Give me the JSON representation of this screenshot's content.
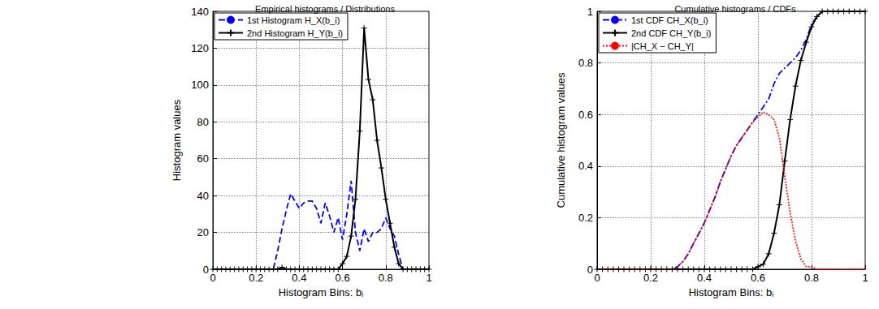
{
  "chart_data": [
    {
      "type": "line",
      "title": "Empirical histograms / Distributions",
      "x_label": "Histogram Bins: bᵢ",
      "y_label": "Histogram values",
      "x": [
        0,
        0.02,
        0.04,
        0.06,
        0.08,
        0.1,
        0.12,
        0.14,
        0.16,
        0.18,
        0.2,
        0.22,
        0.24,
        0.26,
        0.28,
        0.3,
        0.32,
        0.34,
        0.36,
        0.38,
        0.4,
        0.42,
        0.44,
        0.46,
        0.48,
        0.5,
        0.52,
        0.54,
        0.56,
        0.58,
        0.6,
        0.62,
        0.64,
        0.66,
        0.68,
        0.7,
        0.72,
        0.74,
        0.76,
        0.78,
        0.8,
        0.82,
        0.84,
        0.86,
        0.88,
        0.9,
        0.92,
        0.94,
        0.96,
        0.98,
        1
      ],
      "xlim": [
        0,
        1
      ],
      "xticks": [
        0,
        0.2,
        0.4,
        0.6,
        0.8,
        1
      ],
      "ylim": [
        0,
        140
      ],
      "yticks": [
        0,
        20,
        40,
        60,
        80,
        100,
        120,
        140
      ],
      "grid": true,
      "legend": "upper left",
      "series": [
        {
          "name": "1st Histogram H_X(b_i)",
          "color": "#0000ff",
          "line_style": "dashed",
          "marker": "none",
          "values": [
            0,
            0,
            0,
            0,
            0,
            0,
            0,
            0,
            0,
            0,
            0,
            0,
            0,
            0,
            0,
            10,
            22,
            32,
            41,
            37,
            33,
            36,
            37,
            37,
            33,
            25,
            36,
            29,
            20,
            28,
            16,
            30,
            48,
            20,
            10,
            22,
            15,
            20,
            20,
            22,
            28,
            22,
            18,
            8,
            0,
            0,
            0,
            0,
            0,
            0,
            0
          ]
        },
        {
          "name": "2nd Histogram H_Y(b_i)",
          "color": "#000000",
          "line_style": "solid",
          "marker": "plus",
          "values": [
            0,
            0,
            0,
            0,
            0,
            0,
            0,
            0,
            0,
            0,
            0,
            0,
            0,
            0,
            0,
            0,
            1,
            0,
            0,
            0,
            0,
            0,
            0,
            0,
            0,
            0,
            0,
            0,
            0,
            0,
            3,
            7,
            18,
            38,
            75,
            131,
            103,
            92,
            70,
            55,
            38,
            25,
            12,
            3,
            0,
            0,
            0,
            0,
            0,
            0,
            0
          ]
        }
      ]
    },
    {
      "type": "line",
      "title": "Cumulative histograms / CDFs",
      "x_label": "Histogram Bins: bᵢ",
      "y_label": "Cumulative histogram values",
      "x": [
        0,
        0.02,
        0.04,
        0.06,
        0.08,
        0.1,
        0.12,
        0.14,
        0.16,
        0.18,
        0.2,
        0.22,
        0.24,
        0.26,
        0.28,
        0.3,
        0.32,
        0.34,
        0.36,
        0.38,
        0.4,
        0.42,
        0.44,
        0.46,
        0.48,
        0.5,
        0.52,
        0.54,
        0.56,
        0.58,
        0.6,
        0.62,
        0.64,
        0.66,
        0.68,
        0.7,
        0.72,
        0.74,
        0.76,
        0.78,
        0.8,
        0.82,
        0.84,
        0.86,
        0.88,
        0.9,
        0.92,
        0.94,
        0.96,
        0.98,
        1
      ],
      "xlim": [
        0,
        1
      ],
      "xticks": [
        0,
        0.2,
        0.4,
        0.6,
        0.8,
        1
      ],
      "ylim": [
        0,
        1
      ],
      "yticks": [
        0,
        0.2,
        0.4,
        0.6,
        0.8,
        1
      ],
      "grid": true,
      "legend": "upper left",
      "series": [
        {
          "name": "1st CDF CH_X(b_i)",
          "color": "#0000ff",
          "line_style": "dashdot",
          "marker": "none",
          "values": [
            0,
            0,
            0,
            0,
            0,
            0,
            0,
            0,
            0,
            0,
            0,
            0,
            0,
            0,
            0,
            0.01,
            0.03,
            0.06,
            0.1,
            0.14,
            0.18,
            0.23,
            0.28,
            0.34,
            0.39,
            0.44,
            0.48,
            0.51,
            0.54,
            0.57,
            0.6,
            0.63,
            0.66,
            0.72,
            0.76,
            0.78,
            0.8,
            0.82,
            0.85,
            0.89,
            0.95,
            0.98,
            1,
            1,
            1,
            1,
            1,
            1,
            1,
            1,
            1
          ]
        },
        {
          "name": "2nd CDF CH_Y(b_i)",
          "color": "#000000",
          "line_style": "solid",
          "marker": "plus",
          "values": [
            0,
            0,
            0,
            0,
            0,
            0,
            0,
            0,
            0,
            0,
            0,
            0,
            0,
            0,
            0,
            0,
            0,
            0,
            0,
            0,
            0,
            0,
            0,
            0,
            0,
            0,
            0,
            0,
            0,
            0,
            0.01,
            0.02,
            0.06,
            0.14,
            0.25,
            0.42,
            0.58,
            0.71,
            0.81,
            0.88,
            0.94,
            0.98,
            1,
            1,
            1,
            1,
            1,
            1,
            1,
            1,
            1
          ]
        },
        {
          "name": "|CH_X − CH_Y|",
          "color": "#ff0000",
          "line_style": "dotted",
          "marker": "none",
          "values": [
            0,
            0,
            0,
            0,
            0,
            0,
            0,
            0,
            0,
            0,
            0,
            0,
            0,
            0,
            0,
            0.01,
            0.03,
            0.06,
            0.1,
            0.14,
            0.18,
            0.23,
            0.28,
            0.34,
            0.39,
            0.44,
            0.48,
            0.51,
            0.54,
            0.57,
            0.59,
            0.61,
            0.6,
            0.58,
            0.51,
            0.36,
            0.22,
            0.11,
            0.04,
            0.01,
            0.01,
            0,
            0,
            0,
            0,
            0,
            0,
            0,
            0,
            0,
            0
          ]
        }
      ]
    }
  ]
}
